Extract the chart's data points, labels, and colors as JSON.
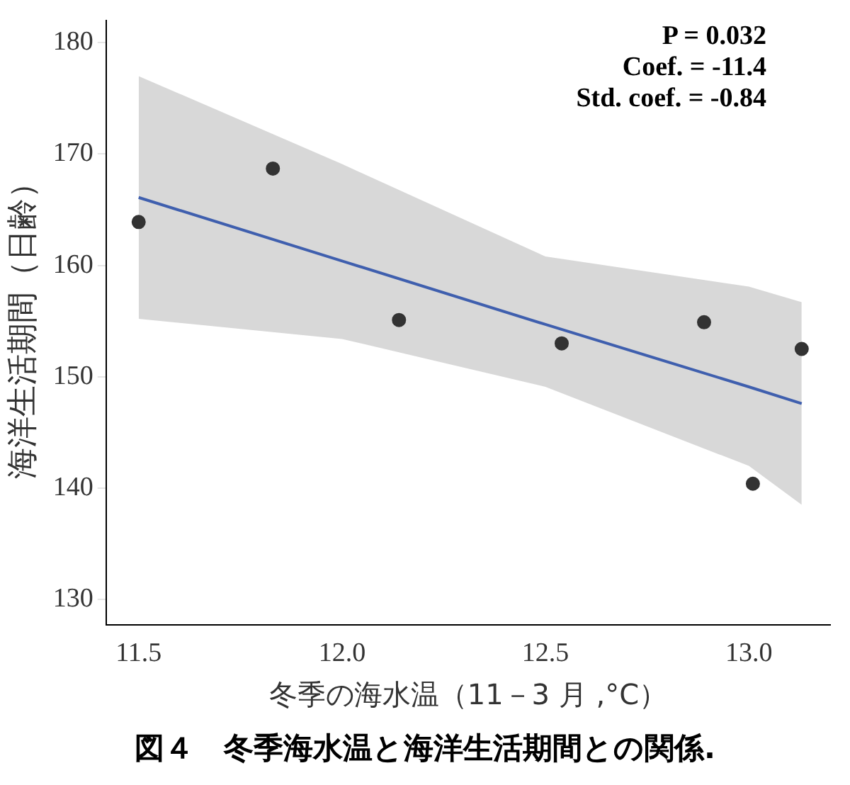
{
  "chart_data": {
    "type": "scatter",
    "title": "図４　冬季海水温と海洋生活期間との関係.",
    "xlabel": "冬季の海水温（11－3 月 ,°C）",
    "ylabel": "海洋生活期間（日齢）",
    "x": [
      11.5,
      11.83,
      12.14,
      12.54,
      12.89,
      13.01,
      13.13
    ],
    "series": [
      {
        "color": "#333333",
        "marker": "circle",
        "values": [
          163.9,
          168.7,
          155.1,
          153.0,
          154.9,
          140.4,
          152.5
        ]
      },
      {
        "type": "line",
        "color": "#3f5fae",
        "x": [
          11.5,
          12.0,
          12.5,
          13.0,
          13.13
        ],
        "values": [
          166.1,
          160.4,
          154.7,
          149.1,
          147.6
        ],
        "lower": [
          155.2,
          153.4,
          149.1,
          142.0,
          138.5
        ],
        "upper": [
          177.0,
          169.1,
          160.8,
          158.1,
          156.7
        ]
      }
    ],
    "xlim": [
      11.42,
      13.2
    ],
    "xticks": [
      {
        "value": 11.5,
        "label": "11.5"
      },
      {
        "value": 12,
        "label": "12.0"
      },
      {
        "value": 12.5,
        "label": "12.5"
      },
      {
        "value": 13,
        "label": "13.0"
      }
    ],
    "ylim": [
      127.7,
      182
    ],
    "yticks": [
      130,
      140,
      150,
      160,
      170,
      180
    ],
    "grid": false,
    "legend": false,
    "line_style": "solid",
    "annotations": [
      "P = 0.032",
      "Coef. = -11.4",
      "Std. coef. = -0.84"
    ]
  }
}
